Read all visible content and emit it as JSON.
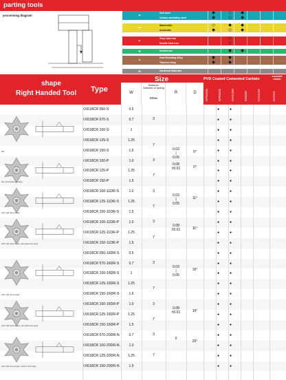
{
  "header": {
    "title": "parting tools"
  },
  "diagram": {
    "label": "processing diagram"
  },
  "materials": [
    {
      "code": "P",
      "color": "#1aa4b4",
      "items": [
        {
          "name": "Soft steel",
          "marks": [
            "◆",
            "◇",
            "◆"
          ]
        },
        {
          "name": "Carbon steel/alloy steel",
          "marks": [
            "◆",
            "◇",
            "◆"
          ]
        }
      ]
    },
    {
      "code": "M",
      "color": "#e9d632",
      "items": [
        {
          "name": "Martensitic",
          "marks": [
            "◇",
            "◆",
            "◆"
          ]
        },
        {
          "name": "Austenitic",
          "marks": [
            "◆",
            "◇",
            "◆"
          ]
        }
      ]
    },
    {
      "code": "K",
      "color": "#e1242a",
      "items": [
        {
          "name": "Grey Cast iron",
          "marks": [
            "",
            "◇",
            ""
          ]
        },
        {
          "name": "Ductile Cast iron",
          "marks": [
            "",
            "◇",
            ""
          ]
        }
      ]
    },
    {
      "code": "N",
      "color": "#2bb673",
      "items": [
        {
          "name": "Nonferrous",
          "marks": [
            "",
            "◆",
            "◆"
          ]
        }
      ]
    },
    {
      "code": "S",
      "color": "#a46a4e",
      "items": [
        {
          "name": "Heat Resisting Alloy",
          "marks": [
            "◆",
            "◆",
            ""
          ]
        },
        {
          "name": "Titanium Alloy",
          "marks": [
            "◆",
            "◆",
            ""
          ]
        }
      ]
    },
    {
      "code": "H",
      "color": "#8a8a8a",
      "items": [
        {
          "name": "Hardened Materials",
          "marks": [
            "",
            "",
            ""
          ]
        }
      ]
    }
  ],
  "table_header": {
    "shape": "shape",
    "right_handed": "Right Handed Tool",
    "type": "Type",
    "size": "Size",
    "pvd": "PVD Coated Cemented Carbide",
    "cemented": "cemented carbide",
    "w": "W",
    "max_dia": "Maximum Diameter of parting",
    "dmax": "DMax",
    "r": "R",
    "d": "D",
    "grades": [
      "KPM10N",
      "KPM15S",
      "KHS10M",
      "KMS20",
      "KCN10D",
      "KCN10"
    ]
  },
  "rows": [
    {
      "type": "KX618CR  050-S",
      "w": "0.5"
    },
    {
      "type": "KX618CR  070-S",
      "w": "0.7"
    },
    {
      "type": "KX618CR  100-S",
      "w": "1"
    },
    {
      "type": "KX618CR  125-S",
      "w": "1.25"
    },
    {
      "type": "KX618CR  150-S",
      "w": "1.5"
    },
    {
      "type": "KX618CR  100-P",
      "w": "1.0"
    },
    {
      "type": "KX618CR  125-P",
      "w": "1.25"
    },
    {
      "type": "KX618CR  150-P",
      "w": "1.5"
    },
    {
      "type": "KX618CR  100-11DR-S",
      "w": "1.0"
    },
    {
      "type": "KX618CR  125-11DR-S",
      "w": "1.25"
    },
    {
      "type": "KX618CR  150-11DR-S",
      "w": "1.5"
    },
    {
      "type": "KX618CR  100-11DR-P",
      "w": "1.0"
    },
    {
      "type": "KX618CR  125-11DR-P",
      "w": "1.25"
    },
    {
      "type": "KX618CR  150-11DR-P",
      "w": "1.5"
    },
    {
      "type": "KX618CR  050-16DR-S",
      "w": "0.5"
    },
    {
      "type": "KX618CR  070-16DR-S",
      "w": "0.7"
    },
    {
      "type": "KX618CR  100-16DR-S",
      "w": "1"
    },
    {
      "type": "KX618CR  125-16DR-S",
      "w": "1.25"
    },
    {
      "type": "KX618CR  150-16DR-S",
      "w": "1.5"
    },
    {
      "type": "KX618CR  100-16DR-P",
      "w": "1.0"
    },
    {
      "type": "KX618CR  125-16DR-P",
      "w": "1.25"
    },
    {
      "type": "KX618CR  150-16DR-P",
      "w": "1.5"
    },
    {
      "type": "KX618CR  070-20DR-N",
      "w": "0.7"
    },
    {
      "type": "KX618CR  100-20DR-N",
      "w": "1.0"
    },
    {
      "type": "KX618CR  125-20DR-N",
      "w": "1.25"
    },
    {
      "type": "KX618CR  150-20DR-N",
      "w": "1.5"
    }
  ],
  "merged": [
    {
      "dmax": "3",
      "r": "",
      "d": ""
    },
    {
      "dmax": "7",
      "r": "0.03\n|\n0.05",
      "d": "0°"
    },
    {
      "dmax": "3",
      "r": "0.08\n±0.01",
      "d": "0°"
    },
    {
      "dmax": "7",
      "r": "",
      "d": ""
    },
    {
      "dmax": "3",
      "r": "0.03\n|\n0.05",
      "d": "11°"
    },
    {
      "dmax": "7",
      "r": "",
      "d": ""
    },
    {
      "dmax": "3",
      "r": "0.08\n±0.01",
      "d": "11°"
    },
    {
      "dmax": "7",
      "r": "",
      "d": ""
    },
    {
      "dmax": "3",
      "r": "0.03\n|\n0.05",
      "d": "16°"
    },
    {
      "dmax": "7",
      "r": "",
      "d": ""
    },
    {
      "dmax": "3",
      "r": "0.08\n±0.01",
      "d": "16°"
    },
    {
      "dmax": "7",
      "r": "",
      "d": ""
    },
    {
      "dmax": "3",
      "r": "0",
      "d": "20°"
    },
    {
      "dmax": "7",
      "r": "",
      "d": ""
    }
  ],
  "dot": "●",
  "tool_captions": [
    "flat",
    "flat, strengthened edge",
    "with right lead angle",
    "with right lead angle, strengthened edge",
    "with right lead angle",
    "with right lead angle, strengthened edge",
    "with right lead angle, without flat edge"
  ]
}
